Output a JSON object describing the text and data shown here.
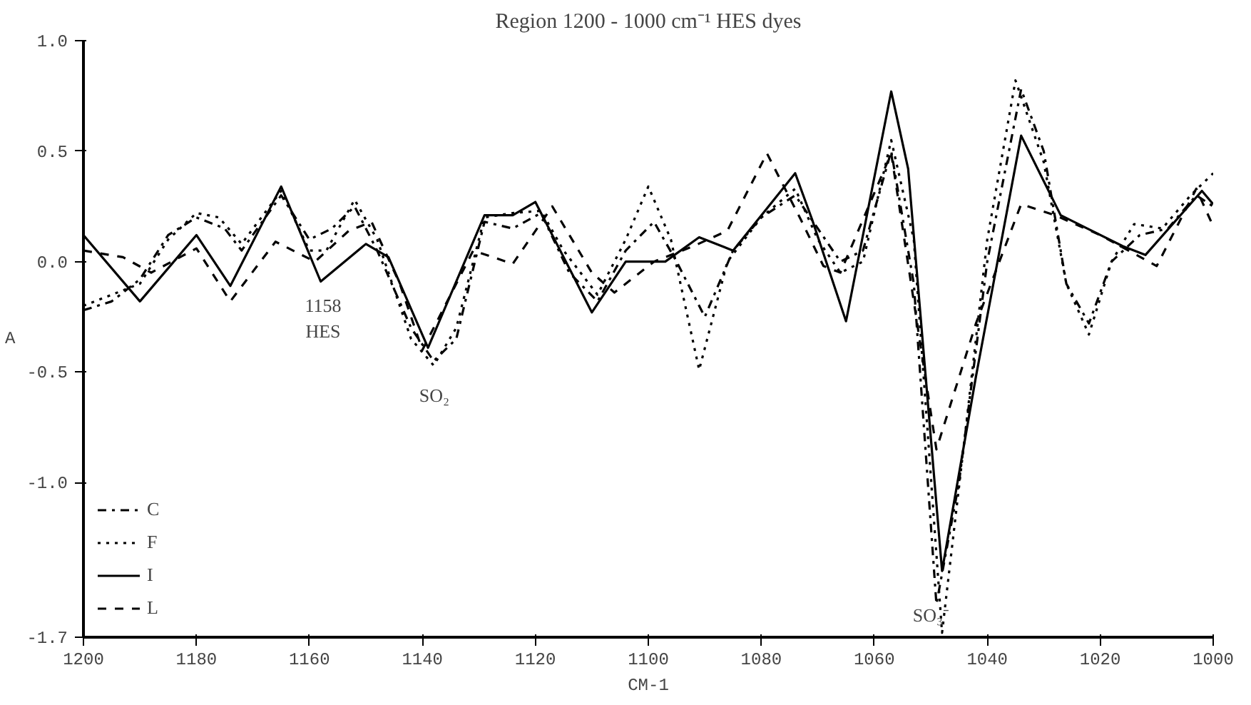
{
  "chart_data": {
    "type": "line",
    "title": "Region 1200 - 1000 cm⁻¹ HES dyes",
    "xlabel": "CM-1",
    "ylabel": "A",
    "xlim": [
      1200,
      1000
    ],
    "xticks": [
      1200,
      1180,
      1160,
      1140,
      1120,
      1100,
      1080,
      1060,
      1040,
      1020,
      1000
    ],
    "ylim": [
      -1.7,
      1.0
    ],
    "yticks": [
      {
        "value": 1.0,
        "label": "1.0"
      },
      {
        "value": 0.5,
        "label": "0.5"
      },
      {
        "value": 0.0,
        "label": "0.0"
      },
      {
        "value": -0.5,
        "label": "-0.5"
      },
      {
        "value": -1.0,
        "label": "-1.0"
      },
      {
        "value": -1.7,
        "label": "-1.7"
      }
    ],
    "grid": false,
    "legend": "bottom left",
    "marker": "none",
    "annotations": [
      "1158\nHES",
      "SO₂",
      {
        "text": "SO₃⁻",
        "x": 1050,
        "y": -1.55
      }
    ],
    "series": [
      {
        "name": "C",
        "color": "#000000",
        "line_style": "dashdot",
        "x": [
          1200,
          1195,
          1190,
          1185,
          1180,
          1175,
          1172,
          1165,
          1160,
          1156,
          1152,
          1148,
          1142,
          1138,
          1134,
          1129,
          1124,
          1119,
          1114,
          1109,
          1104,
          1099,
          1095,
          1090,
          1085,
          1080,
          1074,
          1070,
          1066,
          1062,
          1057,
          1053,
          1049,
          1045,
          1040,
          1034,
          1030,
          1026,
          1022,
          1018,
          1013,
          1008,
          1003,
          1000
        ],
        "values": [
          -0.22,
          -0.18,
          -0.08,
          0.12,
          0.2,
          0.15,
          0.05,
          0.3,
          0.1,
          0.15,
          0.25,
          0.05,
          -0.3,
          -0.45,
          -0.35,
          0.18,
          0.15,
          0.22,
          -0.05,
          -0.18,
          0.05,
          0.18,
          0.0,
          -0.25,
          0.05,
          0.2,
          0.3,
          0.15,
          0.0,
          0.05,
          0.5,
          -0.1,
          -1.55,
          -1.0,
          0.0,
          0.78,
          0.5,
          -0.1,
          -0.28,
          0.0,
          0.12,
          0.15,
          0.3,
          0.25
        ]
      },
      {
        "name": "F",
        "color": "#000000",
        "line_style": "dotted",
        "x": [
          1200,
          1195,
          1190,
          1185,
          1180,
          1176,
          1172,
          1165,
          1160,
          1157,
          1152,
          1148,
          1142,
          1138,
          1134,
          1129,
          1124,
          1119,
          1115,
          1109,
          1104,
          1100,
          1096,
          1091,
          1086,
          1080,
          1074,
          1070,
          1066,
          1062,
          1057,
          1053,
          1048,
          1044,
          1040,
          1035,
          1030,
          1026,
          1022,
          1018,
          1014,
          1009,
          1004,
          1000
        ],
        "values": [
          -0.2,
          -0.15,
          -0.1,
          0.1,
          0.22,
          0.2,
          0.08,
          0.32,
          0.05,
          0.05,
          0.28,
          0.1,
          -0.35,
          -0.47,
          -0.3,
          0.2,
          0.22,
          0.23,
          0.05,
          -0.15,
          0.1,
          0.34,
          0.1,
          -0.49,
          0.0,
          0.2,
          0.33,
          0.1,
          -0.05,
          0.0,
          0.55,
          0.1,
          -1.68,
          -0.8,
          0.1,
          0.82,
          0.45,
          -0.1,
          -0.33,
          0.0,
          0.17,
          0.15,
          0.3,
          0.4
        ]
      },
      {
        "name": "I",
        "color": "#000000",
        "line_style": "solid",
        "x": [
          1200,
          1190,
          1180,
          1174,
          1165,
          1158,
          1150,
          1146,
          1139,
          1129,
          1124,
          1120,
          1110,
          1104,
          1097,
          1091,
          1085,
          1074,
          1071,
          1065,
          1057,
          1054,
          1048,
          1042,
          1034,
          1027,
          1016,
          1012,
          1002,
          1000
        ],
        "values": [
          0.12,
          -0.18,
          0.12,
          -0.11,
          0.34,
          -0.09,
          0.08,
          0.02,
          -0.39,
          0.21,
          0.21,
          0.27,
          -0.23,
          0.0,
          0.0,
          0.11,
          0.05,
          0.4,
          0.19,
          -0.27,
          0.77,
          0.42,
          -1.4,
          -0.52,
          0.57,
          0.21,
          0.07,
          0.03,
          0.32,
          0.26
        ]
      },
      {
        "name": "L",
        "color": "#000000",
        "line_style": "dashed",
        "x": [
          1200,
          1193,
          1188,
          1180,
          1174,
          1166,
          1159,
          1153,
          1149,
          1144,
          1140,
          1131,
          1124,
          1117,
          1110,
          1106,
          1099,
          1092,
          1086,
          1079,
          1073,
          1069,
          1066,
          1057,
          1049,
          1042,
          1034,
          1028,
          1020,
          1010,
          1003,
          1000
        ],
        "values": [
          0.05,
          0.02,
          -0.05,
          0.06,
          -0.18,
          0.09,
          0.0,
          0.14,
          0.18,
          -0.1,
          -0.4,
          0.05,
          -0.01,
          0.25,
          -0.05,
          -0.14,
          0.0,
          0.07,
          0.14,
          0.49,
          0.19,
          -0.02,
          -0.05,
          0.49,
          -0.85,
          -0.28,
          0.26,
          0.21,
          0.12,
          -0.02,
          0.33,
          0.16
        ]
      }
    ]
  }
}
